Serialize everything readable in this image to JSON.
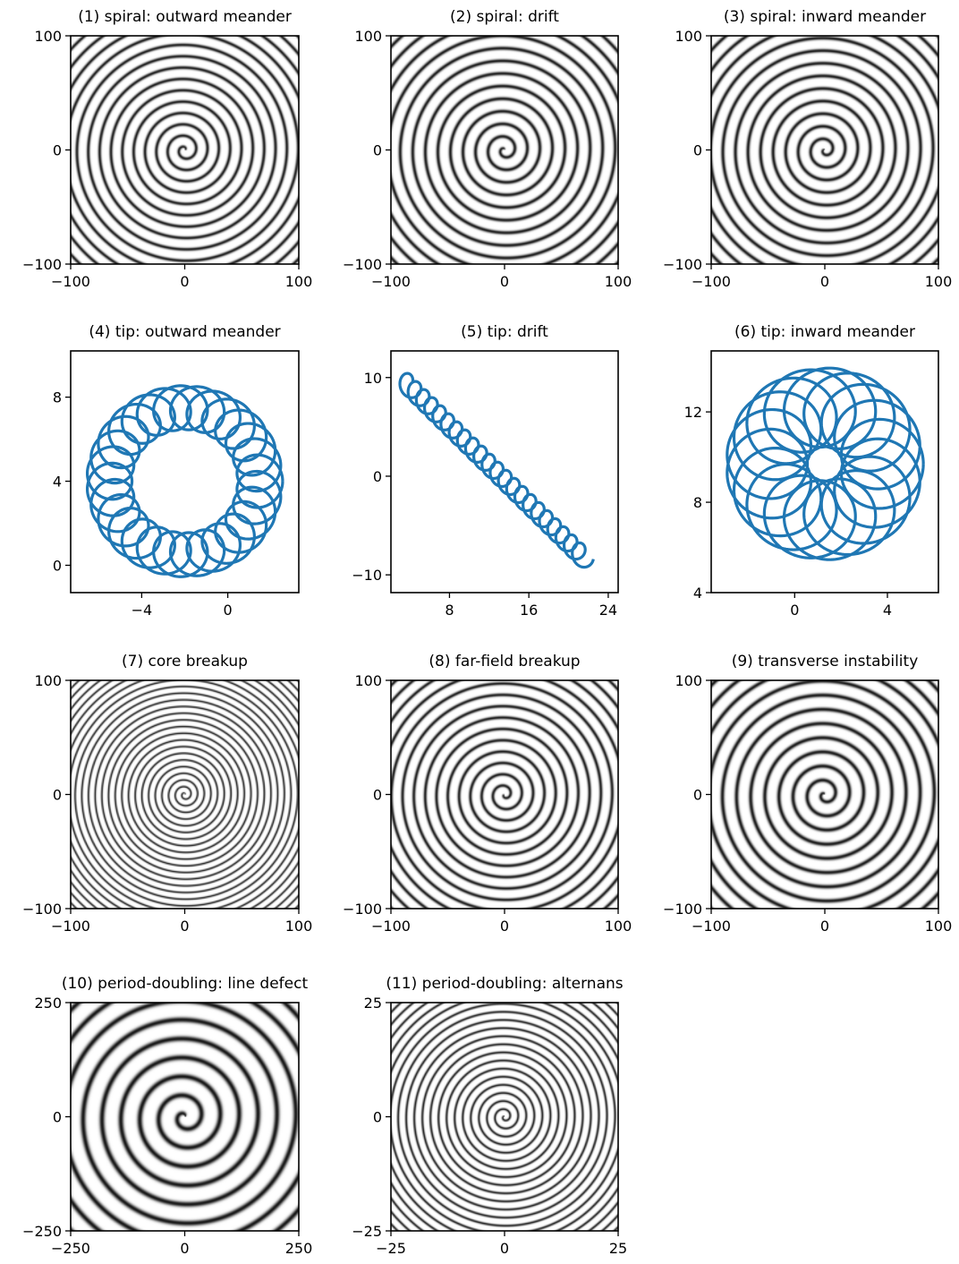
{
  "chart_data": [
    {
      "type": "heatmap",
      "title": "(1) spiral: outward meander",
      "xlim": [
        -100,
        100
      ],
      "ylim": [
        -100,
        100
      ],
      "xticks": [
        -100,
        0,
        100
      ],
      "yticks": [
        -100,
        0,
        100
      ],
      "colormap": "gray",
      "pattern": {
        "arms": 1,
        "turns": 10,
        "chirality": 1,
        "rotation": 0
      }
    },
    {
      "type": "heatmap",
      "title": "(2) spiral: drift",
      "xlim": [
        -100,
        100
      ],
      "ylim": [
        -100,
        100
      ],
      "xticks": [
        -100,
        0,
        100
      ],
      "yticks": [
        -100,
        0,
        100
      ],
      "colormap": "gray",
      "pattern": {
        "arms": 1,
        "turns": 9,
        "chirality": 1,
        "rotation": 1.2
      }
    },
    {
      "type": "heatmap",
      "title": "(3) spiral: inward meander",
      "xlim": [
        -100,
        100
      ],
      "ylim": [
        -100,
        100
      ],
      "xticks": [
        -100,
        0,
        100
      ],
      "yticks": [
        -100,
        0,
        100
      ],
      "colormap": "gray",
      "pattern": {
        "arms": 1,
        "turns": 9,
        "chirality": 1,
        "rotation": 2.4
      }
    },
    {
      "type": "line",
      "title": "(4) tip: outward meander",
      "xlim": [
        -7.3,
        3.3
      ],
      "ylim": [
        -1.3,
        10.2
      ],
      "xticks": [
        -4,
        0
      ],
      "yticks": [
        0,
        4,
        8
      ],
      "color": "#1f77b4",
      "trajectory": {
        "kind": "epicycle",
        "center": [
          -2,
          4
        ],
        "R": 3.5,
        "r": 1.05,
        "loops": 28
      }
    },
    {
      "type": "line",
      "title": "(5) tip: drift",
      "xlim": [
        2.1,
        25.0
      ],
      "ylim": [
        -11.8,
        12.7
      ],
      "xticks": [
        8,
        16,
        24
      ],
      "yticks": [
        -10,
        0,
        10
      ],
      "color": "#1f77b4",
      "trajectory": {
        "kind": "drift",
        "start": [
          4.3,
          9.6
        ],
        "end": [
          22.5,
          -8.4
        ],
        "r": 0.85,
        "loops": 22
      }
    },
    {
      "type": "line",
      "title": "(6) tip: inward meander",
      "xlim": [
        -3.6,
        6.2
      ],
      "ylim": [
        4.0,
        14.7
      ],
      "xticks": [
        0,
        4
      ],
      "yticks": [
        4,
        8,
        12
      ],
      "color": "#1f77b4",
      "trajectory": {
        "kind": "epicycle",
        "center": [
          1.3,
          9.7
        ],
        "R": 2.5,
        "r": 1.75,
        "loops": 18
      }
    },
    {
      "type": "heatmap",
      "title": "(7) core breakup",
      "xlim": [
        -100,
        100
      ],
      "ylim": [
        -100,
        100
      ],
      "xticks": [
        -100,
        0,
        100
      ],
      "yticks": [
        -100,
        0,
        100
      ],
      "colormap": "gray",
      "pattern": {
        "arms": 1,
        "turns": 17,
        "chirality": 1,
        "rotation": 0.5
      }
    },
    {
      "type": "heatmap",
      "title": "(8) far-field breakup",
      "xlim": [
        -100,
        100
      ],
      "ylim": [
        -100,
        100
      ],
      "xticks": [
        -100,
        0,
        100
      ],
      "yticks": [
        -100,
        0,
        100
      ],
      "colormap": "gray",
      "pattern": {
        "arms": 1,
        "turns": 10,
        "chirality": 1,
        "rotation": 3.0
      }
    },
    {
      "type": "heatmap",
      "title": "(9) transverse instability",
      "xlim": [
        -100,
        100
      ],
      "ylim": [
        -100,
        100
      ],
      "xticks": [
        -100,
        0,
        100
      ],
      "yticks": [
        -100,
        0,
        100
      ],
      "colormap": "gray",
      "pattern": {
        "arms": 1,
        "turns": 8,
        "chirality": 1,
        "rotation": 1.6
      }
    },
    {
      "type": "heatmap",
      "title": "(10) period-doubling: line defect",
      "xlim": [
        -250,
        250
      ],
      "ylim": [
        -250,
        250
      ],
      "xticks": [
        -250,
        0,
        250
      ],
      "yticks": [
        -250,
        0,
        250
      ],
      "colormap": "gray",
      "pattern": {
        "arms": 1,
        "turns": 6,
        "chirality": 1,
        "rotation": 0.8
      }
    },
    {
      "type": "heatmap",
      "title": "(11) period-doubling: alternans",
      "xlim": [
        -25,
        25
      ],
      "ylim": [
        -25,
        25
      ],
      "xticks": [
        -25,
        0,
        25
      ],
      "yticks": [
        -25,
        0,
        25
      ],
      "colormap": "gray",
      "pattern": {
        "arms": 1,
        "turns": 14,
        "chirality": 1,
        "rotation": 2.0
      }
    }
  ]
}
